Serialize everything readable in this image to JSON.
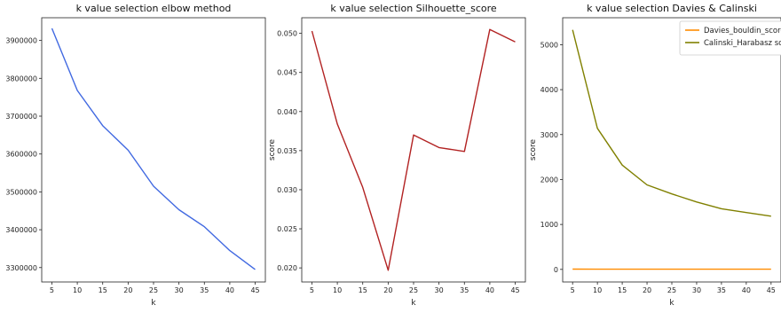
{
  "chart_data": [
    {
      "type": "line",
      "title": "k value selection elbow method",
      "xlabel": "k",
      "ylabel": "",
      "x": [
        5,
        10,
        15,
        20,
        25,
        30,
        35,
        40,
        45
      ],
      "xticks": [
        "5",
        "10",
        "15",
        "20",
        "25",
        "30",
        "35",
        "40",
        "45"
      ],
      "yticks": [
        "3300000",
        "3400000",
        "3500000",
        "3600000",
        "3700000",
        "3800000",
        "3900000"
      ],
      "ylim": [
        3262000,
        3960000
      ],
      "xlim": [
        3,
        47
      ],
      "grid": false,
      "series": [
        {
          "values": [
            3932000,
            3768000,
            3675000,
            3610000,
            3515000,
            3453000,
            3408000,
            3345000,
            3295000
          ],
          "color": "#4169e1"
        }
      ]
    },
    {
      "type": "line",
      "title": "k value selection Silhouette_score",
      "xlabel": "k",
      "ylabel": "score",
      "x": [
        5,
        10,
        15,
        20,
        25,
        30,
        35,
        40,
        45
      ],
      "xticks": [
        "5",
        "10",
        "15",
        "20",
        "25",
        "30",
        "35",
        "40",
        "45"
      ],
      "yticks": [
        "0.020",
        "0.025",
        "0.030",
        "0.035",
        "0.040",
        "0.045",
        "0.050"
      ],
      "ylim": [
        0.0182,
        0.052
      ],
      "xlim": [
        3,
        47
      ],
      "grid": false,
      "series": [
        {
          "values": [
            0.0503,
            0.0384,
            0.0303,
            0.0197,
            0.037,
            0.0354,
            0.0349,
            0.0505,
            0.0489
          ],
          "color": "#b22222"
        }
      ]
    },
    {
      "type": "line",
      "title": "k value selection Davies & Calinski",
      "xlabel": "k",
      "ylabel": "score",
      "x": [
        5,
        10,
        15,
        20,
        25,
        30,
        35,
        40,
        45
      ],
      "xticks": [
        "5",
        "10",
        "15",
        "20",
        "25",
        "30",
        "35",
        "40",
        "45"
      ],
      "yticks": [
        "0",
        "1000",
        "2000",
        "3000",
        "4000",
        "5000"
      ],
      "ylim": [
        -280,
        5600
      ],
      "xlim": [
        3,
        47
      ],
      "grid": false,
      "legend_position": "top-right",
      "series": [
        {
          "name": "Davies_bouldin_score",
          "values": [
            6,
            5,
            5,
            5,
            4,
            4,
            4,
            4,
            4
          ],
          "color": "#ff8c00"
        },
        {
          "name": "Calinski_Harabasz score",
          "values": [
            5330,
            3140,
            2320,
            1880,
            1680,
            1500,
            1350,
            1265,
            1185
          ],
          "color": "#808000"
        }
      ]
    }
  ]
}
